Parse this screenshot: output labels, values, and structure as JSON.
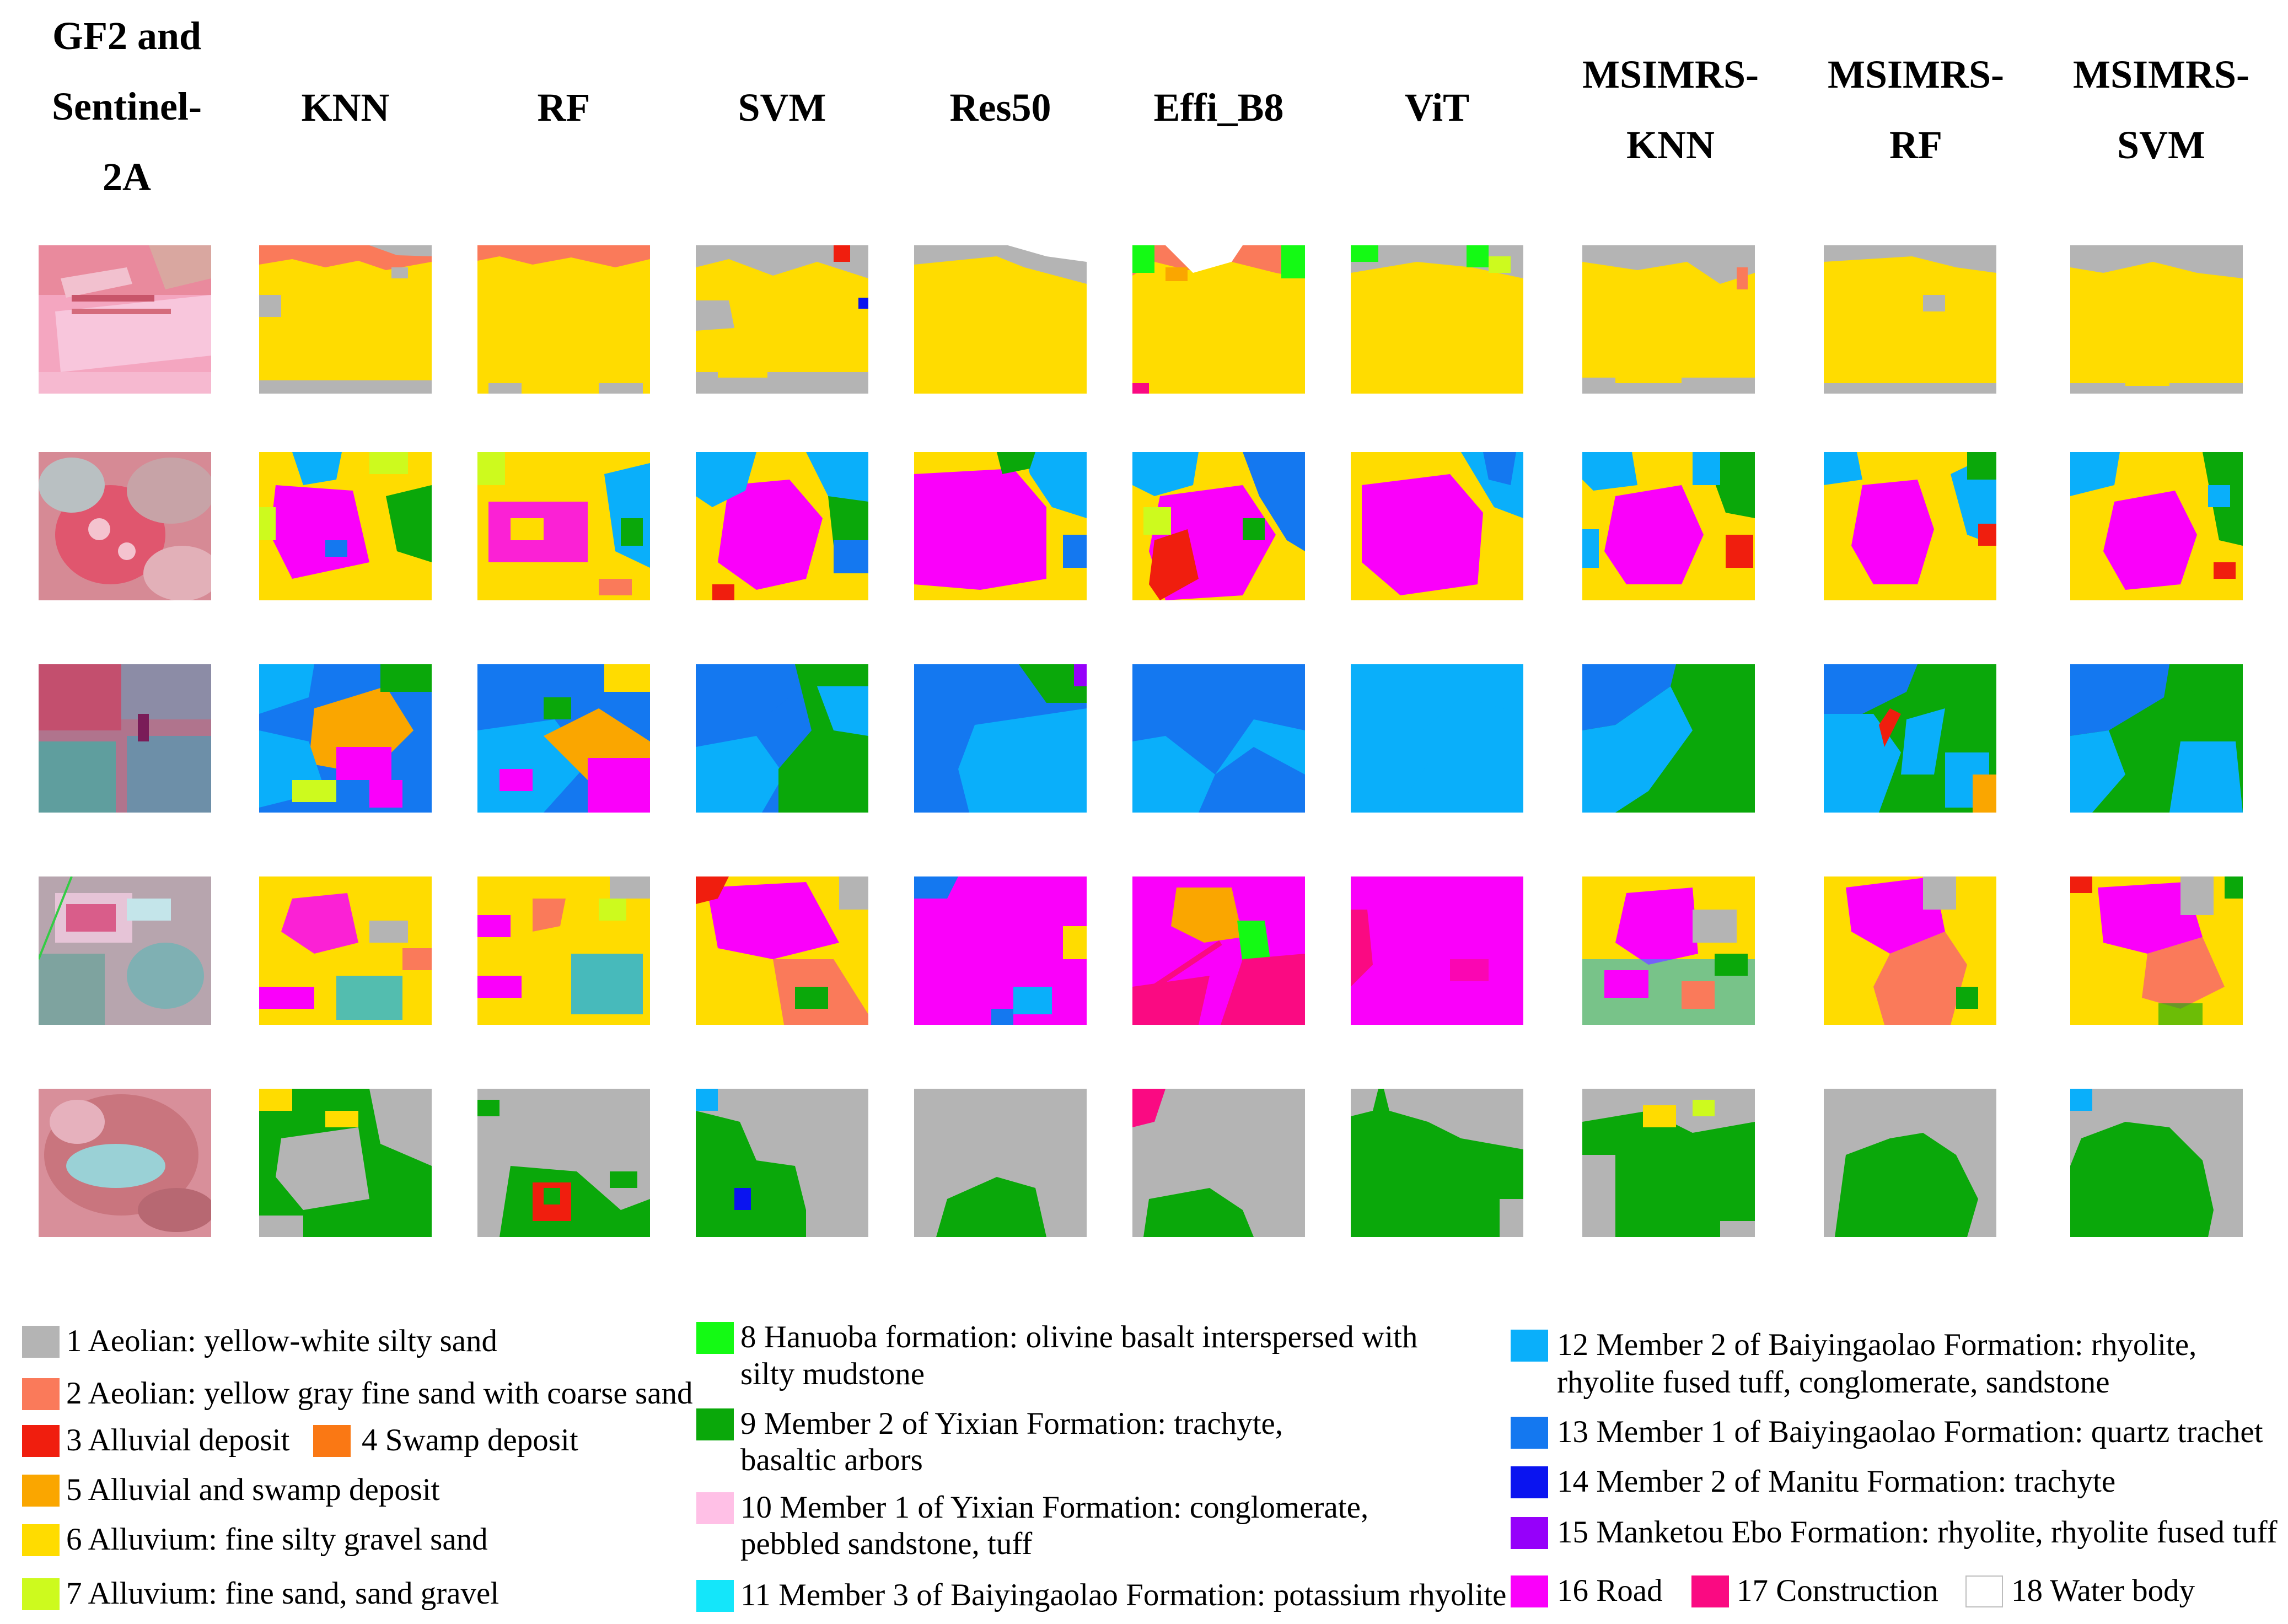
{
  "columns": {
    "source": [
      "GF2 and",
      "Sentinel-",
      "2A"
    ],
    "knn": "KNN",
    "rf": "RF",
    "svm": "SVM",
    "res50": "Res50",
    "effi": "Effi_B8",
    "vit": "ViT",
    "msimrs_knn": [
      "MSIMRS-",
      "KNN"
    ],
    "msimrs_rf": [
      "MSIMRS-",
      "RF"
    ],
    "msimrs_svm": [
      "MSIMRS-",
      "SVM"
    ]
  },
  "legend": {
    "c1": "1 Aeolian: yellow-white silty sand",
    "c2": "2 Aeolian: yellow gray fine sand with coarse sand",
    "c3": "3 Alluvial deposit",
    "c4": "4 Swamp deposit",
    "c5": "5 Alluvial and swamp deposit",
    "c6": "6 Alluvium: fine silty gravel sand",
    "c7": "7 Alluvium: fine sand, sand gravel",
    "c8a": "8 Hanuoba formation: olivine basalt interspersed with",
    "c8b": "silty mudstone",
    "c9a": "9 Member 2 of Yixian Formation: trachyte,",
    "c9b": "basaltic arbors",
    "c10a": "10 Member 1 of Yixian Formation: conglomerate,",
    "c10b": "pebbled sandstone, tuff",
    "c11": "11 Member 3 of Baiyingaolao Formation: potassium rhyolite",
    "c12a": "12 Member 2 of Baiyingaolao Formation: rhyolite,",
    "c12b": "rhyolite fused tuff, conglomerate, sandstone",
    "c13": "13 Member 1 of Baiyingaolao Formation: quartz trachet",
    "c14": "14 Member 2 of Manitu Formation: trachyte",
    "c15": "15 Manketou Ebo Formation: rhyolite, rhyolite fused tuff",
    "c16": "16 Road",
    "c17": "17 Construction",
    "c18": "18 Water body"
  },
  "colors": {
    "c1": "#b4b4b4",
    "c2": "#fa7a5a",
    "c3": "#f01e0e",
    "c4": "#fa7814",
    "c5": "#faa600",
    "c6": "#ffdc00",
    "c7": "#cdfa1e",
    "c8": "#14fa14",
    "c9": "#0aa80a",
    "c10": "#ffc0e6",
    "c11": "#14e6fa",
    "c12": "#0aaffa",
    "c13": "#1478f0",
    "c14": "#0a14f0",
    "c15": "#9600fa",
    "c16": "#fa00fa",
    "c17": "#fa0a82",
    "c18": "#ffffff"
  }
}
